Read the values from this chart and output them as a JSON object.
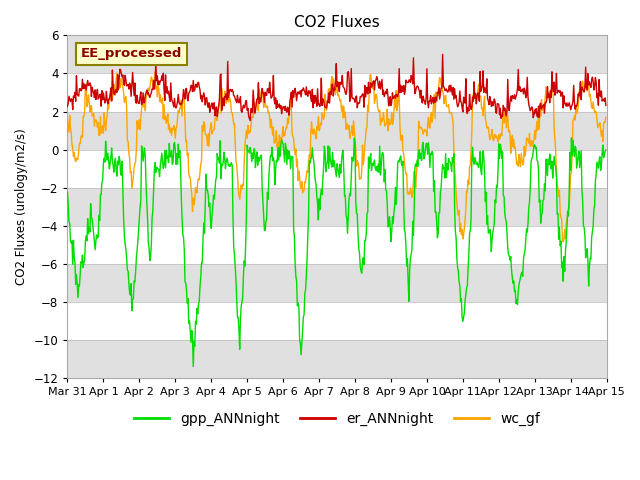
{
  "title": "CO2 Fluxes",
  "ylabel": "CO2 Fluxes (urology/m2/s)",
  "ylim": [
    -12,
    6
  ],
  "yticks": [
    -12,
    -10,
    -8,
    -6,
    -4,
    -2,
    0,
    2,
    4,
    6
  ],
  "series": {
    "gpp_ANNnight": {
      "color": "#00dd00",
      "linewidth": 1.0
    },
    "er_ANNnight": {
      "color": "#cc0000",
      "linewidth": 1.0
    },
    "wc_gf": {
      "color": "#ffa500",
      "linewidth": 1.0
    }
  },
  "legend_label": "EE_processed",
  "legend_label_color": "#8B0000",
  "legend_box_facecolor": "#ffffcc",
  "legend_box_edgecolor": "#8B8000",
  "background_color": "#ffffff",
  "stripe_color": "#e0e0e0",
  "xtick_labels": [
    "Mar 31",
    "Apr 1",
    "Apr 2",
    "Apr 3",
    "Apr 4",
    "Apr 5",
    "Apr 6",
    "Apr 7",
    "Apr 8",
    "Apr 9",
    "Apr 10",
    "Apr 11",
    "Apr 12",
    "Apr 13",
    "Apr 14",
    "Apr 15"
  ],
  "xtick_positions": [
    0,
    1,
    2,
    3,
    4,
    5,
    6,
    7,
    8,
    9,
    10,
    11,
    12,
    13,
    14,
    15
  ],
  "n_per_day": 48,
  "n_days": 15
}
